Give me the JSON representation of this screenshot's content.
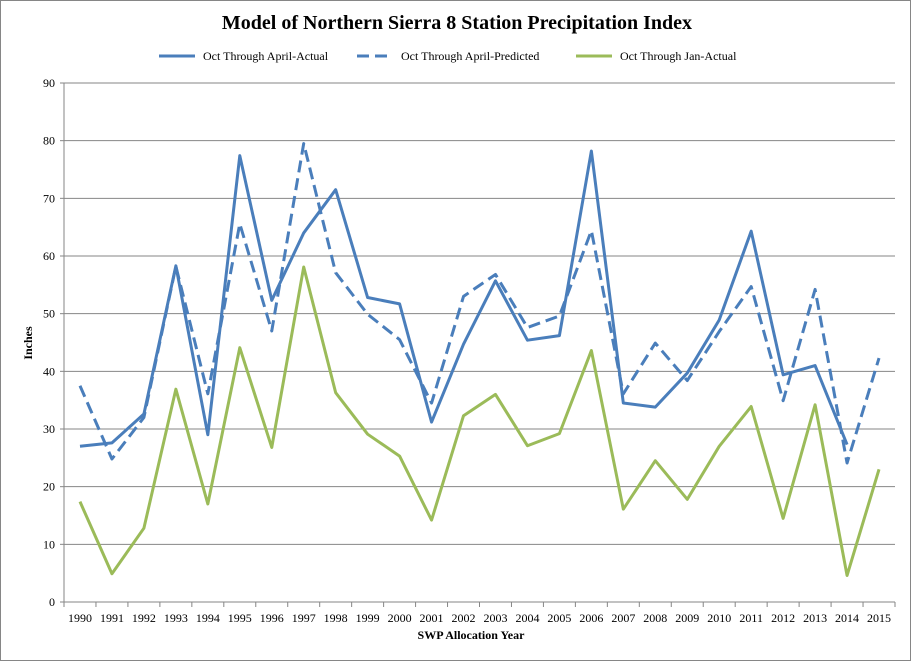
{
  "chart_data": {
    "type": "line",
    "title": "Model of Northern  Sierra  8 Station Precipitation  Index",
    "xlabel": "SWP Allocation  Year",
    "ylabel": "Inches",
    "ylim": [
      0,
      90
    ],
    "yticks": [
      "0",
      "10",
      "20",
      "30",
      "40",
      "50",
      "60",
      "70",
      "80",
      "90"
    ],
    "grid": "horizontal",
    "legend_position": "top",
    "categories": [
      "1990",
      "1991",
      "1992",
      "1993",
      "1994",
      "1995",
      "1996",
      "1997",
      "1998",
      "1999",
      "2000",
      "2001",
      "2002",
      "2003",
      "2004",
      "2005",
      "2006",
      "2007",
      "2008",
      "2009",
      "2010",
      "2011",
      "2012",
      "2013",
      "2014",
      "2015"
    ],
    "series": [
      {
        "name": "Oct Through April-Actual",
        "color": "#4a7ebb",
        "dash": "solid",
        "values": [
          27.0,
          27.6,
          32.6,
          58.3,
          29.0,
          77.4,
          52.3,
          64.0,
          71.5,
          52.8,
          51.7,
          31.2,
          44.7,
          55.7,
          45.4,
          46.2,
          78.2,
          34.5,
          33.8,
          39.7,
          48.9,
          64.3,
          39.4,
          41.0,
          27.3,
          null
        ]
      },
      {
        "name": "Oct Through April-Predicted",
        "color": "#4a7ebb",
        "dash": "dashed",
        "values": [
          37.5,
          24.8,
          32.0,
          58.2,
          36.1,
          65.6,
          47.0,
          79.5,
          57.1,
          49.9,
          45.5,
          34.5,
          53.0,
          56.8,
          47.6,
          49.6,
          64.4,
          36.1,
          44.9,
          38.4,
          46.9,
          54.7,
          34.9,
          54.2,
          24.1,
          42.3
        ]
      },
      {
        "name": "Oct Through Jan-Actual",
        "color": "#9bbb59",
        "dash": "solid",
        "values": [
          17.4,
          4.9,
          12.8,
          36.9,
          17.0,
          44.1,
          26.8,
          58.1,
          36.3,
          29.1,
          25.3,
          14.2,
          32.3,
          36.0,
          27.1,
          29.2,
          43.6,
          16.1,
          24.5,
          17.8,
          27.0,
          33.9,
          14.5,
          34.2,
          4.6,
          23.0
        ]
      }
    ]
  }
}
